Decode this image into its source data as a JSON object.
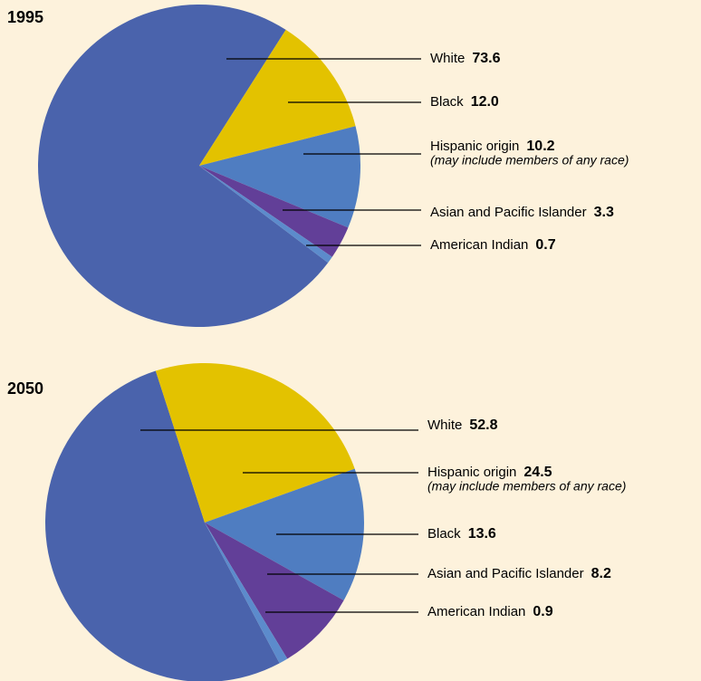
{
  "chart_data": [
    {
      "type": "pie",
      "title": "1995",
      "categories": [
        "White",
        "Black",
        "Hispanic origin",
        "Asian and Pacific Islander",
        "American Indian"
      ],
      "values": [
        73.6,
        12.0,
        10.2,
        3.3,
        0.7
      ],
      "value_labels": [
        "73.6",
        "12.0",
        "10.2",
        "3.3",
        "0.7"
      ],
      "annotations": [
        null,
        null,
        "(may include members of any race)",
        null,
        null
      ],
      "colors": [
        "#4a63ac",
        "#e3c200",
        "#4f7dc1",
        "#623f98",
        "#5c8bcc"
      ]
    },
    {
      "type": "pie",
      "title": "2050",
      "categories": [
        "White",
        "Hispanic origin",
        "Black",
        "Asian and Pacific Islander",
        "American Indian"
      ],
      "values": [
        52.8,
        24.5,
        13.6,
        8.2,
        0.9
      ],
      "value_labels": [
        "52.8",
        "24.5",
        "13.6",
        "8.2",
        "0.9"
      ],
      "annotations": [
        null,
        "(may include members of any race)",
        null,
        null,
        null
      ],
      "colors": [
        "#4a63ac",
        "#e3c200",
        "#4f7dc1",
        "#623f98",
        "#5c8bcc"
      ]
    }
  ]
}
